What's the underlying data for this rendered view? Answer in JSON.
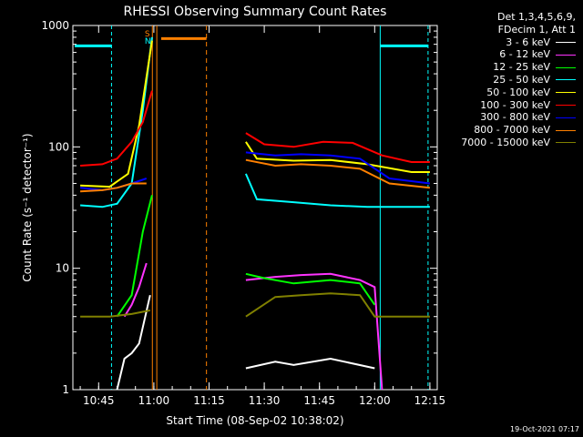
{
  "chart_data": {
    "type": "line",
    "title": "RHESSI Observing Summary Count Rates",
    "xlabel": "Start Time (08-Sep-02 10:38:02)",
    "ylabel": "Count Rate (s⁻¹ detector⁻¹)",
    "yscale": "log",
    "ylim": [
      1,
      1000
    ],
    "xlim_minutes": [
      0,
      99
    ],
    "x_ticks": [
      {
        "minute": 7,
        "label": "10:45"
      },
      {
        "minute": 22,
        "label": "11:00"
      },
      {
        "minute": 37,
        "label": "11:15"
      },
      {
        "minute": 52,
        "label": "11:30"
      },
      {
        "minute": 67,
        "label": "11:45"
      },
      {
        "minute": 82,
        "label": "12:00"
      },
      {
        "minute": 97,
        "label": "12:15"
      }
    ],
    "y_ticks": [
      {
        "value": 1,
        "label": "1"
      },
      {
        "value": 10,
        "label": "10"
      },
      {
        "value": 100,
        "label": "100"
      },
      {
        "value": 1000,
        "label": "1000"
      }
    ],
    "legend_header": [
      "Det 1,3,4,5,6,9,",
      "FDecim 1, Att 1"
    ],
    "series": [
      {
        "name": "3 - 6 keV",
        "color": "#ffffff",
        "segments": [
          [
            [
              12,
              1
            ],
            [
              14,
              1.8
            ],
            [
              16,
              2
            ],
            [
              18,
              2.4
            ],
            [
              21,
              6
            ]
          ],
          [
            [
              47,
              1.5
            ],
            [
              55,
              1.7
            ],
            [
              60,
              1.6
            ],
            [
              70,
              1.8
            ],
            [
              82,
              1.5
            ]
          ]
        ]
      },
      {
        "name": "6 - 12 keV",
        "color": "#ff33ff",
        "segments": [
          [
            [
              14,
              4
            ],
            [
              16,
              5
            ],
            [
              18,
              7
            ],
            [
              20,
              11
            ]
          ],
          [
            [
              47,
              8
            ],
            [
              55,
              8.5
            ],
            [
              62,
              8.8
            ],
            [
              70,
              9
            ],
            [
              78,
              8
            ],
            [
              82,
              7
            ],
            [
              84,
              1
            ]
          ]
        ]
      },
      {
        "name": "12 - 25 keV",
        "color": "#00ff00",
        "segments": [
          [
            [
              12,
              4
            ],
            [
              16,
              6
            ],
            [
              19,
              20
            ],
            [
              21.5,
              40
            ]
          ],
          [
            [
              47,
              9
            ],
            [
              52,
              8.3
            ],
            [
              60,
              7.5
            ],
            [
              70,
              8
            ],
            [
              78,
              7.5
            ],
            [
              82,
              5
            ]
          ]
        ]
      },
      {
        "name": "25 - 50 keV",
        "color": "#00ffff",
        "segments": [
          [
            [
              2,
              33
            ],
            [
              8,
              32
            ],
            [
              12,
              34
            ],
            [
              16,
              50
            ],
            [
              19,
              200
            ],
            [
              21.5,
              800
            ]
          ],
          [
            [
              47,
              60
            ],
            [
              50,
              37
            ],
            [
              60,
              35
            ],
            [
              70,
              33
            ],
            [
              80,
              32
            ],
            [
              92,
              32
            ],
            [
              97,
              32
            ]
          ]
        ]
      },
      {
        "name": "50 - 100 keV",
        "color": "#ffff00",
        "segments": [
          [
            [
              2,
              48
            ],
            [
              10,
              47
            ],
            [
              15,
              60
            ],
            [
              18,
              150
            ],
            [
              21.5,
              750
            ]
          ],
          [
            [
              47,
              110
            ],
            [
              50,
              80
            ],
            [
              60,
              77
            ],
            [
              70,
              78
            ],
            [
              80,
              72
            ],
            [
              92,
              62
            ],
            [
              97,
              62
            ]
          ]
        ]
      },
      {
        "name": "100 - 300 keV",
        "color": "#ff0000",
        "segments": [
          [
            [
              2,
              70
            ],
            [
              8,
              72
            ],
            [
              12,
              80
            ],
            [
              16,
              110
            ],
            [
              19,
              160
            ],
            [
              21.5,
              290
            ]
          ],
          [
            [
              47,
              130
            ],
            [
              52,
              105
            ],
            [
              60,
              100
            ],
            [
              68,
              110
            ],
            [
              76,
              108
            ],
            [
              84,
              85
            ],
            [
              92,
              75
            ],
            [
              97,
              75
            ]
          ]
        ]
      },
      {
        "name": "300 - 800 keV",
        "color": "#0000ff",
        "segments": [
          [
            [
              2,
              46
            ],
            [
              8,
              44
            ],
            [
              12,
              46
            ],
            [
              16,
              50
            ],
            [
              20,
              55
            ]
          ],
          [
            [
              47,
              90
            ],
            [
              55,
              85
            ],
            [
              62,
              87
            ],
            [
              70,
              85
            ],
            [
              78,
              80
            ],
            [
              86,
              55
            ],
            [
              97,
              50
            ]
          ]
        ]
      },
      {
        "name": "800 - 7000 keV",
        "color": "#ff8000",
        "segments": [
          [
            [
              2,
              43
            ],
            [
              8,
              44
            ],
            [
              12,
              46
            ],
            [
              16,
              50
            ],
            [
              20,
              50
            ]
          ],
          [
            [
              47,
              78
            ],
            [
              55,
              70
            ],
            [
              62,
              72
            ],
            [
              70,
              70
            ],
            [
              78,
              66
            ],
            [
              86,
              50
            ],
            [
              97,
              46
            ]
          ]
        ]
      },
      {
        "name": "7000 - 15000 keV",
        "color": "#808000",
        "segments": [
          [
            [
              2,
              4
            ],
            [
              10,
              4
            ],
            [
              16,
              4.2
            ],
            [
              21,
              4.5
            ]
          ],
          [
            [
              47,
              4
            ],
            [
              55,
              5.8
            ],
            [
              62,
              6
            ],
            [
              70,
              6.2
            ],
            [
              78,
              6
            ],
            [
              82,
              4
            ],
            [
              97,
              4
            ]
          ]
        ]
      }
    ],
    "annotations": [
      {
        "label": "S",
        "minute": 21,
        "color": "#ff8000"
      },
      {
        "label": "N",
        "minute": 21,
        "color": "#00ffff"
      }
    ]
  },
  "footer": {
    "timestamp": "19-Oct-2021 07:17"
  }
}
